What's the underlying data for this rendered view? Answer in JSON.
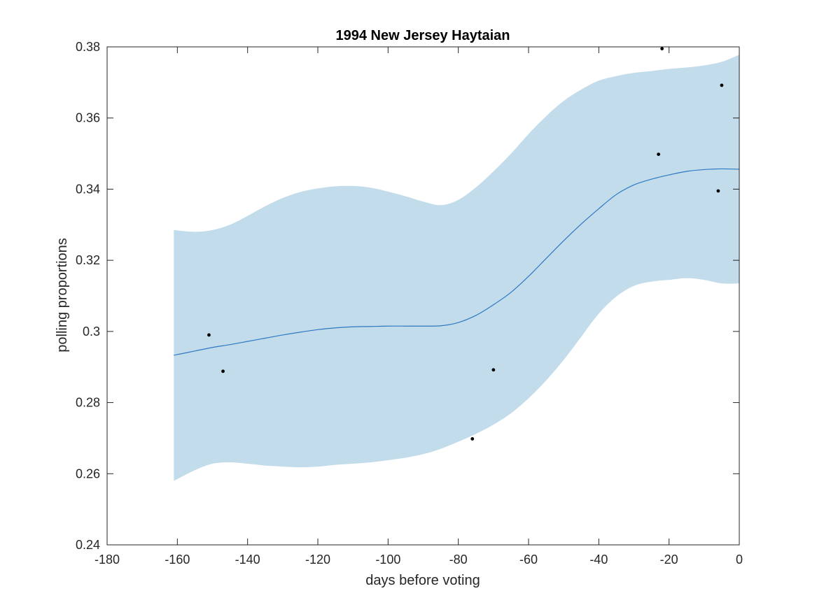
{
  "chart_data": {
    "type": "line",
    "title": "1994 New Jersey Haytaian",
    "xlabel": "days before voting",
    "ylabel": "polling proportions",
    "xlim": [
      -180,
      0
    ],
    "ylim": [
      0.24,
      0.38
    ],
    "xticks": [
      -180,
      -160,
      -140,
      -120,
      -100,
      -80,
      -60,
      -40,
      -20,
      0
    ],
    "xtick_labels": [
      "-180",
      "-160",
      "-140",
      "-120",
      "-100",
      "-80",
      "-60",
      "-40",
      "-20",
      "0"
    ],
    "yticks": [
      0.24,
      0.26,
      0.28,
      0.3,
      0.32,
      0.34,
      0.36,
      0.38
    ],
    "ytick_labels": [
      "0.24",
      "0.26",
      "0.28",
      "0.3",
      "0.32",
      "0.34",
      "0.36",
      "0.38"
    ],
    "grid": false,
    "colors": {
      "band": "#c2dceb",
      "line": "#2e78c3",
      "points": "#000000",
      "axis": "#262626"
    },
    "series": [
      {
        "kind": "band",
        "x": [
          -161,
          -155,
          -150,
          -145,
          -140,
          -135,
          -130,
          -125,
          -120,
          -115,
          -110,
          -105,
          -100,
          -95,
          -90,
          -85,
          -80,
          -75,
          -70,
          -65,
          -60,
          -55,
          -50,
          -45,
          -40,
          -35,
          -30,
          -25,
          -20,
          -15,
          -10,
          -5,
          0
        ],
        "upper": [
          0.3285,
          0.328,
          0.3285,
          0.33,
          0.3325,
          0.3352,
          0.3375,
          0.3392,
          0.3402,
          0.3408,
          0.3409,
          0.3404,
          0.3393,
          0.338,
          0.3365,
          0.3355,
          0.337,
          0.3405,
          0.345,
          0.35,
          0.3555,
          0.3605,
          0.3648,
          0.368,
          0.3705,
          0.3718,
          0.3727,
          0.3732,
          0.3738,
          0.3742,
          0.3748,
          0.3758,
          0.3778
        ],
        "lower": [
          0.258,
          0.261,
          0.2628,
          0.2632,
          0.2628,
          0.2623,
          0.262,
          0.2618,
          0.262,
          0.2625,
          0.2628,
          0.2632,
          0.2638,
          0.2645,
          0.2655,
          0.267,
          0.269,
          0.2712,
          0.2738,
          0.277,
          0.2812,
          0.2862,
          0.292,
          0.2985,
          0.305,
          0.3098,
          0.3128,
          0.314,
          0.3145,
          0.315,
          0.3145,
          0.3135,
          0.3135
        ]
      },
      {
        "kind": "line",
        "x": [
          -161,
          -155,
          -150,
          -145,
          -140,
          -135,
          -130,
          -125,
          -120,
          -115,
          -110,
          -105,
          -100,
          -95,
          -90,
          -85,
          -80,
          -75,
          -70,
          -65,
          -60,
          -55,
          -50,
          -45,
          -40,
          -35,
          -30,
          -25,
          -20,
          -15,
          -10,
          -5,
          0
        ],
        "y": [
          0.2933,
          0.2945,
          0.2955,
          0.2963,
          0.2972,
          0.2981,
          0.299,
          0.2998,
          0.3005,
          0.301,
          0.3013,
          0.3014,
          0.3015,
          0.3015,
          0.3015,
          0.3016,
          0.3025,
          0.3045,
          0.3075,
          0.311,
          0.3155,
          0.3205,
          0.3255,
          0.3302,
          0.3345,
          0.3385,
          0.3412,
          0.3428,
          0.344,
          0.345,
          0.3455,
          0.3457,
          0.3456
        ]
      },
      {
        "kind": "scatter",
        "x": [
          -151,
          -147,
          -76,
          -70,
          -23,
          -22,
          -6,
          -5
        ],
        "y": [
          0.299,
          0.2888,
          0.2698,
          0.2892,
          0.3498,
          0.3795,
          0.3395,
          0.3692
        ]
      }
    ]
  }
}
